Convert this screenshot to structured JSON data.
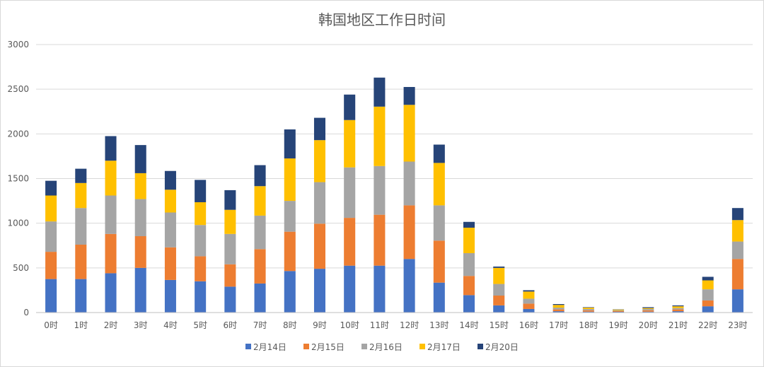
{
  "chart_data": {
    "type": "bar",
    "stacked": true,
    "title": "韩国地区工作日时间",
    "xlabel": "",
    "ylabel": "",
    "ylim": [
      0,
      3000
    ],
    "yticks": [
      0,
      500,
      1000,
      1500,
      2000,
      2500,
      3000
    ],
    "grid": true,
    "legend_position": "bottom",
    "categories": [
      "0时",
      "1时",
      "2时",
      "3时",
      "4时",
      "5时",
      "6时",
      "7时",
      "8时",
      "9时",
      "10时",
      "11时",
      "12时",
      "13时",
      "14时",
      "15时",
      "16时",
      "17时",
      "18时",
      "19时",
      "20时",
      "21时",
      "22时",
      "23时"
    ],
    "series": [
      {
        "name": "2月14日",
        "color": "#4472c4",
        "values": [
          375,
          375,
          440,
          500,
          365,
          350,
          290,
          325,
          465,
          490,
          525,
          525,
          600,
          335,
          195,
          80,
          40,
          15,
          10,
          8,
          10,
          15,
          70,
          260
        ]
      },
      {
        "name": "2月15日",
        "color": "#ed7d31",
        "values": [
          305,
          385,
          440,
          355,
          365,
          280,
          250,
          385,
          440,
          505,
          535,
          570,
          600,
          470,
          215,
          110,
          60,
          20,
          15,
          8,
          15,
          20,
          65,
          340
        ]
      },
      {
        "name": "2月16日",
        "color": "#a5a5a5",
        "values": [
          340,
          410,
          430,
          415,
          390,
          350,
          340,
          375,
          345,
          465,
          565,
          545,
          490,
          395,
          255,
          130,
          55,
          20,
          15,
          8,
          15,
          15,
          125,
          195
        ]
      },
      {
        "name": "2月17日",
        "color": "#ffc000",
        "values": [
          290,
          280,
          390,
          290,
          255,
          255,
          270,
          330,
          475,
          470,
          530,
          665,
          635,
          475,
          285,
          180,
          80,
          30,
          15,
          8,
          10,
          20,
          100,
          240
        ]
      },
      {
        "name": "2月20日",
        "color": "#264478",
        "values": [
          165,
          160,
          275,
          315,
          210,
          250,
          220,
          235,
          325,
          250,
          285,
          325,
          200,
          205,
          65,
          15,
          15,
          10,
          5,
          3,
          10,
          10,
          40,
          135
        ]
      }
    ]
  }
}
